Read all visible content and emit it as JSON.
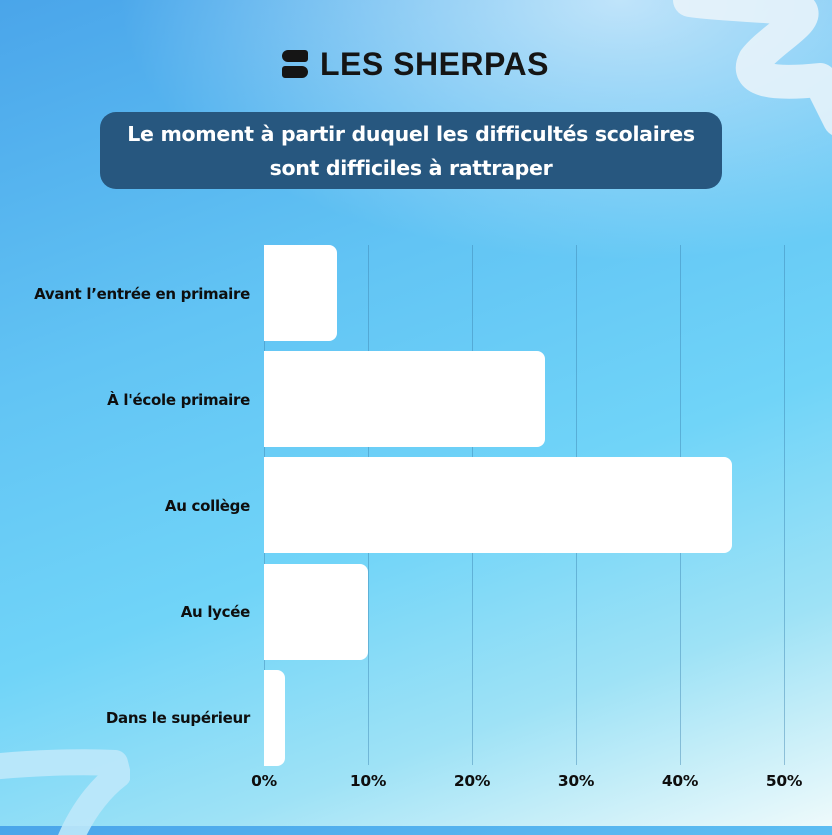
{
  "brand": {
    "logo_icon": "les-sherpas-logo-icon",
    "name": "LES SHERPAS"
  },
  "colors": {
    "title_bg": "#27577f",
    "bar_fill": "#ffffff",
    "text": "#0e0e0e"
  },
  "chart_data": {
    "type": "bar",
    "orientation": "horizontal",
    "title": "Le moment à partir duquel les difficultés scolaires sont difficiles à rattraper",
    "title_lines": [
      "Le moment à partir duquel les difficultés scolaires",
      "sont difficiles à rattraper"
    ],
    "categories": [
      "Avant l’entrée en primaire",
      "À l'école primaire",
      "Au collège",
      "Au lycée",
      "Dans le supérieur"
    ],
    "values": [
      7,
      27,
      45,
      10,
      2
    ],
    "unit": "%",
    "xlabel": "",
    "ylabel": "",
    "xlim": [
      0,
      50
    ],
    "x_ticks": [
      "0%",
      "10%",
      "20%",
      "30%",
      "40%",
      "50%"
    ],
    "grid": true,
    "legend": "none"
  }
}
